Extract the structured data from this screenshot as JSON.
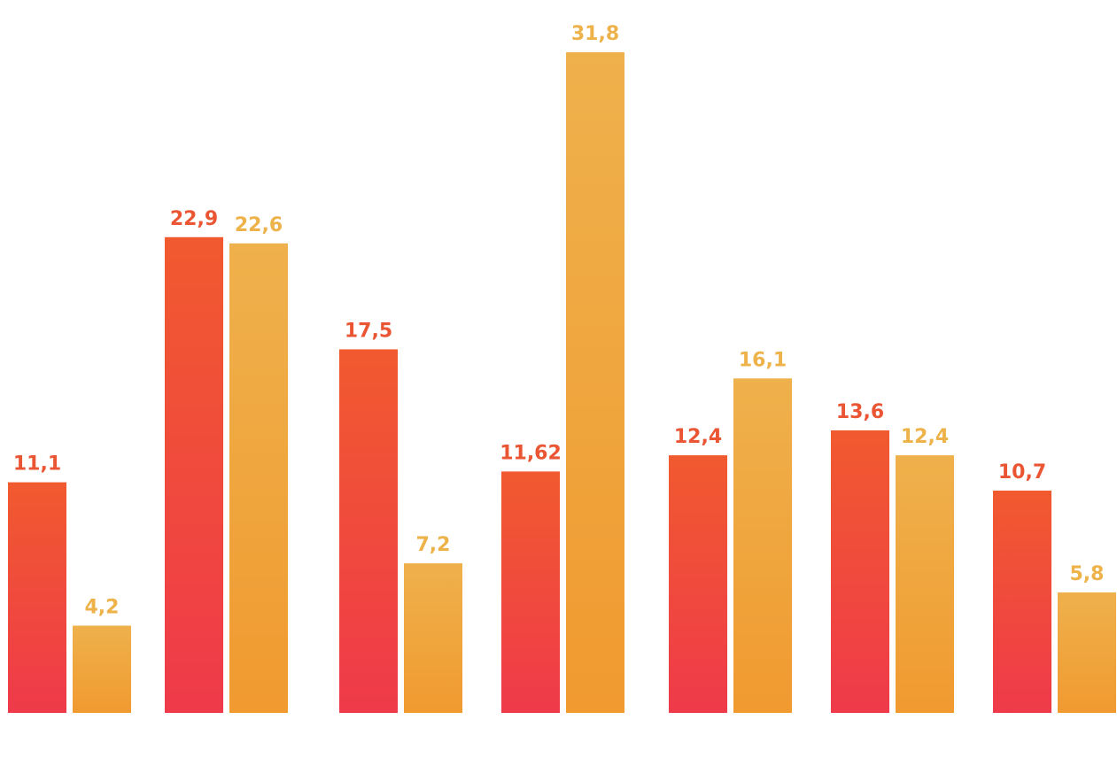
{
  "chart_data": {
    "type": "bar",
    "title": "",
    "xlabel": "",
    "ylabel": "",
    "categories": [
      "",
      "",
      "",
      "",
      "",
      "",
      ""
    ],
    "ylim": [
      0,
      31.8
    ],
    "grid": false,
    "legend": "none",
    "series": [
      {
        "color_top": "#f15a2f",
        "color_bottom": "#ef3a4a",
        "label_color": "#ea5533",
        "values": [
          11.1,
          22.9,
          17.5,
          11.62,
          12.4,
          13.6,
          10.7
        ],
        "labels": [
          "11,1",
          "22,9",
          "17,5",
          "11,62",
          "12,4",
          "13,6",
          "10,7"
        ]
      },
      {
        "color_top": "#efb14c",
        "color_bottom": "#f09a30",
        "label_color": "#eeb24a",
        "values": [
          4.2,
          22.6,
          7.2,
          31.8,
          16.1,
          12.4,
          5.8
        ],
        "labels": [
          "4,2",
          "22,6",
          "7,2",
          "31,8",
          "16,1",
          "12,4",
          "5,8"
        ]
      }
    ]
  }
}
